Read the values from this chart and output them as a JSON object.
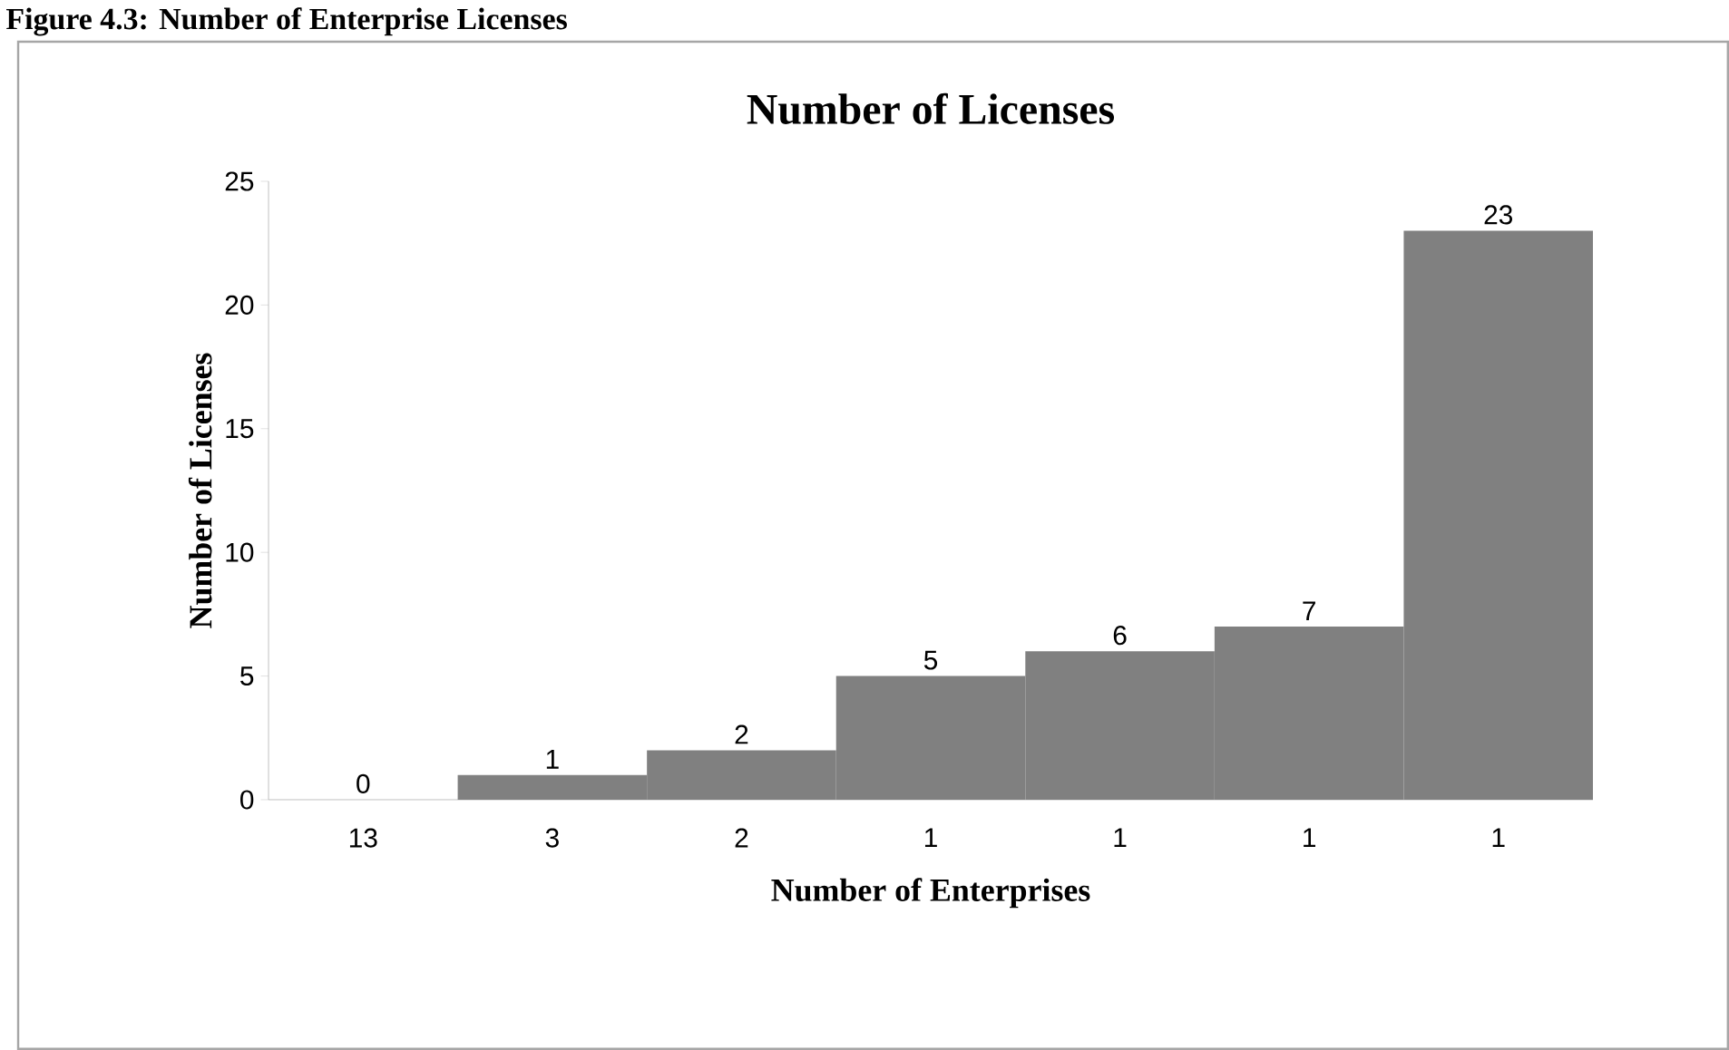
{
  "chart_data": {
    "type": "bar",
    "title": "Number of Licenses",
    "xlabel": "Number of Enterprises",
    "ylabel": "Number of Licenses",
    "annotations": [
      "Figure 4.3: Number of Enterprise Licenses"
    ],
    "categories": [
      "13",
      "3",
      "2",
      "1",
      "1",
      "1",
      "1"
    ],
    "values": [
      0,
      1,
      2,
      5,
      6,
      7,
      23
    ],
    "color": "#808080",
    "ylim": [
      0,
      25
    ],
    "yticks": [
      0,
      5,
      10,
      15,
      20,
      25
    ],
    "data_labels": true,
    "grid": false
  }
}
